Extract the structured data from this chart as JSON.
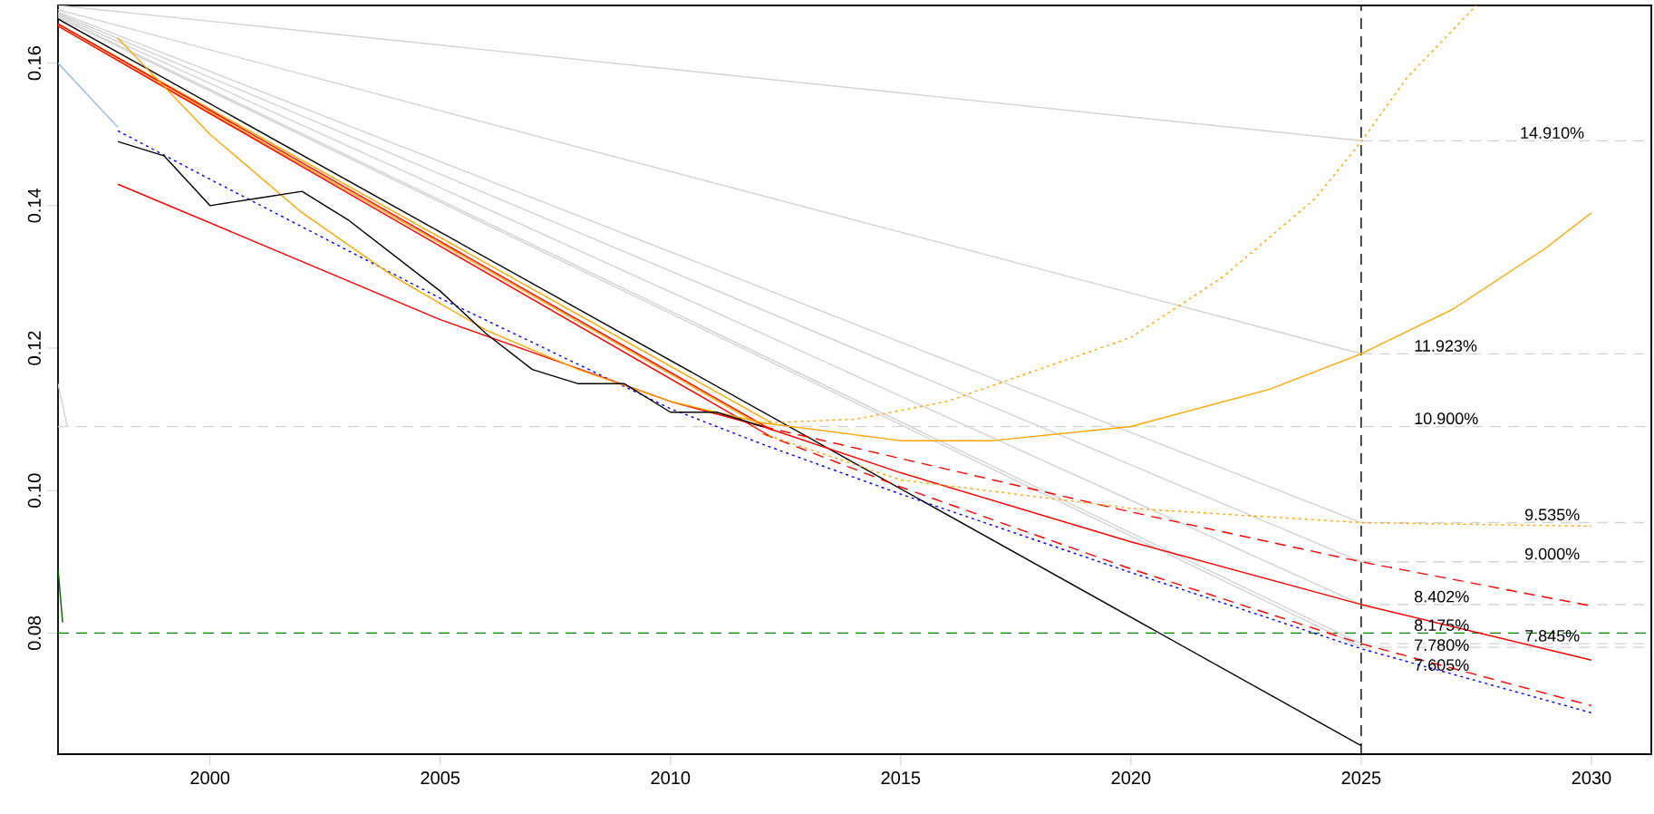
{
  "chart_data": {
    "type": "line",
    "xlim": [
      1996.7,
      2031.3
    ],
    "ylim": [
      0.063,
      0.1681
    ],
    "xticks": [
      2000,
      2005,
      2010,
      2015,
      2020,
      2025,
      2030
    ],
    "yticks": [
      {
        "value": 0.08,
        "label": "0.08"
      },
      {
        "value": 0.1,
        "label": "0.10"
      },
      {
        "value": 0.12,
        "label": "0.12"
      },
      {
        "value": 0.14,
        "label": "0.14"
      },
      {
        "value": 0.16,
        "label": "0.16"
      }
    ],
    "grid": false,
    "series": [
      {
        "color": "#d3d3d3",
        "line_style": "solid",
        "x": [
          1996.7,
          2025
        ],
        "values": [
          0.1681,
          0.1491
        ]
      },
      {
        "color": "#d3d3d3",
        "line_style": "solid",
        "x": [
          1996.7,
          2025
        ],
        "values": [
          0.1675,
          0.1192
        ]
      },
      {
        "color": "#d3d3d3",
        "line_style": "solid",
        "x": [
          1996.7,
          2025
        ],
        "values": [
          0.1672,
          0.0955
        ]
      },
      {
        "color": "#d3d3d3",
        "line_style": "solid",
        "x": [
          1996.7,
          2025
        ],
        "values": [
          0.167,
          0.09
        ]
      },
      {
        "color": "#d3d3d3",
        "line_style": "solid",
        "x": [
          1996.7,
          2025
        ],
        "values": [
          0.1668,
          0.084
        ]
      },
      {
        "color": "#d3d3d3",
        "line_style": "solid",
        "x": [
          1996.7,
          2025
        ],
        "values": [
          0.1666,
          0.0785
        ]
      },
      {
        "color": "#d3d3d3",
        "line_style": "solid",
        "x": [
          1996.7,
          2025
        ],
        "values": [
          0.1664,
          0.078
        ]
      },
      {
        "color": "#d3d3d3",
        "line_style": "dashed",
        "x": [
          2025,
          2031.3
        ],
        "values": [
          0.1491,
          0.1491
        ]
      },
      {
        "color": "#d3d3d3",
        "line_style": "dashed",
        "x": [
          2025,
          2031.3
        ],
        "values": [
          0.1192,
          0.1192
        ]
      },
      {
        "color": "#d3d3d3",
        "line_style": "dashed",
        "x": [
          2025,
          2031.3
        ],
        "values": [
          0.0955,
          0.0955
        ]
      },
      {
        "color": "#d3d3d3",
        "line_style": "dashed",
        "x": [
          2025,
          2031.3
        ],
        "values": [
          0.09,
          0.09
        ]
      },
      {
        "color": "#d3d3d3",
        "line_style": "dashed",
        "x": [
          2025,
          2031.3
        ],
        "values": [
          0.084,
          0.084
        ]
      },
      {
        "color": "#d3d3d3",
        "line_style": "dashed",
        "x": [
          2025,
          2031.3
        ],
        "values": [
          0.0785,
          0.0785
        ]
      },
      {
        "color": "#d3d3d3",
        "line_style": "dashed",
        "x": [
          2025,
          2031.3
        ],
        "values": [
          0.078,
          0.078
        ]
      },
      {
        "color": "#d3d3d3",
        "line_style": "solid",
        "x": [
          1996.7,
          1996.9
        ],
        "values": [
          0.115,
          0.109
        ]
      },
      {
        "color": "#006400",
        "line_style": "solid",
        "x": [
          1996.7,
          1996.8
        ],
        "values": [
          0.089,
          0.0815
        ]
      },
      {
        "color": "#000000",
        "line_style": "solid",
        "x": [
          1996.7,
          2025
        ],
        "values": [
          0.1662,
          0.0642
        ]
      },
      {
        "color": "#ffa500",
        "line_style": "solid",
        "x": [
          1996.7,
          2012.2
        ],
        "values": [
          0.1655,
          0.1095
        ]
      },
      {
        "color": "#ff0000",
        "line_style": "solid",
        "x": [
          1996.7,
          2012.2
        ],
        "values": [
          0.1655,
          0.1085
        ]
      },
      {
        "color": "#ffa500",
        "line_style": "solid",
        "x": [
          1996.7,
          2012
        ],
        "values": [
          0.1652,
          0.109
        ]
      },
      {
        "color": "#ff0000",
        "line_style": "solid",
        "x": [
          1996.7,
          2012.2
        ],
        "values": [
          0.1652,
          0.1075
        ]
      },
      {
        "color": "#8db6e8",
        "line_style": "solid",
        "x": [
          1996.7,
          1998
        ],
        "values": [
          0.16,
          0.151
        ]
      },
      {
        "color": "#0000ff",
        "line_style": "dotted",
        "x": [
          1998,
          2000,
          2005,
          2010,
          2012,
          2015,
          2020,
          2025,
          2030
        ],
        "values": [
          0.1505,
          0.1437,
          0.127,
          0.1115,
          0.1065,
          0.0995,
          0.0885,
          0.0778,
          0.0688
        ]
      },
      {
        "color": "#ff0000",
        "line_style": "solid",
        "x": [
          1998,
          2005,
          2010,
          2012,
          2015,
          2020,
          2025,
          2030
        ],
        "values": [
          0.143,
          0.124,
          0.1125,
          0.109,
          0.1025,
          0.0928,
          0.084,
          0.0762
        ]
      },
      {
        "color": "#ff0000",
        "line_style": "dashed",
        "x": [
          2012,
          2015,
          2020,
          2025,
          2030
        ],
        "values": [
          0.109,
          0.1045,
          0.097,
          0.09,
          0.0838
        ]
      },
      {
        "color": "#ff0000",
        "line_style": "dashed",
        "x": [
          2012,
          2015,
          2020,
          2025,
          2030
        ],
        "values": [
          0.108,
          0.1005,
          0.089,
          0.0785,
          0.0698
        ]
      },
      {
        "color": "#ffa500",
        "line_style": "solid",
        "x": [
          1998,
          2000,
          2002,
          2004,
          2006,
          2008,
          2010,
          2012,
          2015,
          2017,
          2020,
          2023,
          2025,
          2027,
          2029,
          2030
        ],
        "values": [
          0.1635,
          0.15,
          0.139,
          0.13,
          0.1225,
          0.117,
          0.1125,
          0.1095,
          0.107,
          0.107,
          0.109,
          0.1142,
          0.1192,
          0.1255,
          0.134,
          0.139
        ]
      },
      {
        "color": "#ffa500",
        "line_style": "dotted",
        "x": [
          2012,
          2014,
          2016,
          2018,
          2020,
          2022,
          2024,
          2025,
          2026,
          2027.5
        ],
        "values": [
          0.1095,
          0.11,
          0.1125,
          0.117,
          0.1215,
          0.13,
          0.141,
          0.149,
          0.158,
          0.1681
        ]
      },
      {
        "color": "#ffa500",
        "line_style": "dotted",
        "x": [
          2012,
          2015,
          2020,
          2025,
          2030
        ],
        "values": [
          0.108,
          0.1015,
          0.0975,
          0.0955,
          0.095
        ]
      },
      {
        "color": "#000000",
        "line_style": "solid",
        "x": [
          1998,
          1999,
          2000,
          2001,
          2002,
          2003,
          2004,
          2005,
          2006,
          2007,
          2008,
          2009,
          2010,
          2011,
          2012
        ],
        "values": [
          0.149,
          0.147,
          0.14,
          0.141,
          0.142,
          0.138,
          0.133,
          0.128,
          0.122,
          0.117,
          0.115,
          0.115,
          0.111,
          0.111,
          0.109
        ]
      }
    ],
    "ref_lines": [
      {
        "axis": "x",
        "value": 2025,
        "color": "#000000",
        "line_style": "dashed"
      },
      {
        "axis": "y",
        "value": 0.08,
        "color": "#008000",
        "line_style": "dashed"
      },
      {
        "axis": "y",
        "value": 0.109,
        "color": "#d3d3d3",
        "line_style": "dashed"
      }
    ],
    "annotations": [
      {
        "text": "14.910%",
        "x": 2028.4,
        "y": 0.1491
      },
      {
        "text": "11.923%",
        "x": 2026.1,
        "y": 0.1192
      },
      {
        "text": "10.900%",
        "x": 2026.1,
        "y": 0.109
      },
      {
        "text": "9.535%",
        "x": 2028.5,
        "y": 0.0955
      },
      {
        "text": "9.000%",
        "x": 2028.5,
        "y": 0.09
      },
      {
        "text": "8.402%",
        "x": 2026.1,
        "y": 0.084
      },
      {
        "text": "8.175%",
        "x": 2026.1,
        "y": 0.08
      },
      {
        "text": "7.780%",
        "x": 2026.1,
        "y": 0.0785
      },
      {
        "text": "7.605%",
        "x": 2026.1,
        "y": 0.078
      },
      {
        "text": "7.845%",
        "x": 2028.5,
        "y": 0.0785
      }
    ]
  }
}
